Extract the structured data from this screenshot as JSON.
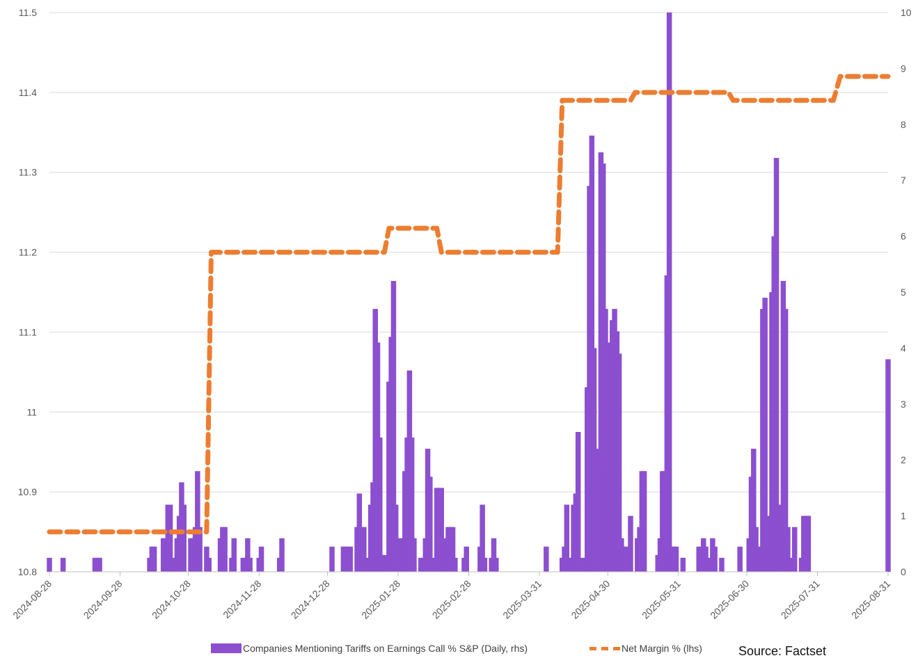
{
  "chart_data": {
    "type": "bar+line",
    "x_range": [
      "2024-08-28",
      "2025-08-31"
    ],
    "x_ticks": [
      "2024-08-28",
      "2024-09-28",
      "2024-10-28",
      "2024-11-28",
      "2024-12-28",
      "2025-01-28",
      "2025-02-28",
      "2025-03-31",
      "2025-04-30",
      "2025-05-31",
      "2025-06-30",
      "2025-07-31",
      "2025-08-31"
    ],
    "left_axis": {
      "label": "Net Margin % (lhs)",
      "min": 10.8,
      "max": 11.5,
      "ticks": [
        "10.8",
        "10.9",
        "11",
        "11.1",
        "11.2",
        "11.3",
        "11.4",
        "11.5"
      ]
    },
    "right_axis": {
      "label": "Companies Mentioning Tariffs on Earnings Call % S&P (Daily, rhs)",
      "min": 0,
      "max": 10,
      "ticks": [
        "0",
        "1",
        "2",
        "3",
        "4",
        "5",
        "6",
        "7",
        "8",
        "9",
        "10"
      ]
    },
    "gridlines": "horizontal",
    "legend_position": "bottom",
    "series": [
      {
        "name": "Companies Mentioning Tariffs on Earnings Call % S&P (Daily, rhs)",
        "type": "bar",
        "axis": "right",
        "color": "#8b4fd0",
        "points": [
          [
            "2024-08-28",
            0.25
          ],
          [
            "2024-09-03",
            0.25
          ],
          [
            "2024-09-17",
            0.25
          ],
          [
            "2024-09-18",
            0.25
          ],
          [
            "2024-09-19",
            0.25
          ],
          [
            "2024-10-11",
            0.25
          ],
          [
            "2024-10-12",
            0.45
          ],
          [
            "2024-10-13",
            0.45
          ],
          [
            "2024-10-17",
            0.6
          ],
          [
            "2024-10-18",
            0.6
          ],
          [
            "2024-10-19",
            1.2
          ],
          [
            "2024-10-20",
            1.2
          ],
          [
            "2024-10-21",
            0.25
          ],
          [
            "2024-10-23",
            0.6
          ],
          [
            "2024-10-24",
            1.0
          ],
          [
            "2024-10-25",
            1.6
          ],
          [
            "2024-10-26",
            1.2
          ],
          [
            "2024-10-29",
            0.6
          ],
          [
            "2024-10-30",
            0.6
          ],
          [
            "2024-10-31",
            0.8
          ],
          [
            "2024-11-01",
            1.8
          ],
          [
            "2024-11-02",
            0.8
          ],
          [
            "2024-11-05",
            0.45
          ],
          [
            "2024-11-06",
            0.25
          ],
          [
            "2024-11-11",
            0.6
          ],
          [
            "2024-11-12",
            0.8
          ],
          [
            "2024-11-13",
            0.8
          ],
          [
            "2024-11-16",
            0.25
          ],
          [
            "2024-11-17",
            0.6
          ],
          [
            "2024-11-21",
            0.25
          ],
          [
            "2024-11-22",
            0.25
          ],
          [
            "2024-11-23",
            0.6
          ],
          [
            "2024-11-24",
            0.25
          ],
          [
            "2024-11-28",
            0.25
          ],
          [
            "2024-11-29",
            0.45
          ],
          [
            "2024-12-07",
            0.25
          ],
          [
            "2024-12-08",
            0.6
          ],
          [
            "2024-12-30",
            0.45
          ],
          [
            "2025-01-04",
            0.45
          ],
          [
            "2025-01-05",
            0.45
          ],
          [
            "2025-01-06",
            0.45
          ],
          [
            "2025-01-07",
            0.45
          ],
          [
            "2025-01-10",
            0.8
          ],
          [
            "2025-01-11",
            1.4
          ],
          [
            "2025-01-12",
            0.8
          ],
          [
            "2025-01-13",
            0.8
          ],
          [
            "2025-01-15",
            0.25
          ],
          [
            "2025-01-16",
            1.2
          ],
          [
            "2025-01-17",
            1.6
          ],
          [
            "2025-01-18",
            4.7
          ],
          [
            "2025-01-19",
            4.1
          ],
          [
            "2025-01-20",
            2.4
          ],
          [
            "2025-01-21",
            0.3
          ],
          [
            "2025-01-22",
            0.3
          ],
          [
            "2025-01-24",
            3.4
          ],
          [
            "2025-01-25",
            4.2
          ],
          [
            "2025-01-26",
            5.2
          ],
          [
            "2025-01-27",
            1.2
          ],
          [
            "2025-01-28",
            0.6
          ],
          [
            "2025-01-30",
            0.6
          ],
          [
            "2025-01-31",
            1.8
          ],
          [
            "2025-02-01",
            2.4
          ],
          [
            "2025-02-02",
            3.6
          ],
          [
            "2025-02-03",
            2.4
          ],
          [
            "2025-02-04",
            0.6
          ],
          [
            "2025-02-07",
            0.25
          ],
          [
            "2025-02-09",
            0.6
          ],
          [
            "2025-02-10",
            2.2
          ],
          [
            "2025-02-11",
            1.7
          ],
          [
            "2025-02-12",
            0.25
          ],
          [
            "2025-02-14",
            1.5
          ],
          [
            "2025-02-15",
            1.5
          ],
          [
            "2025-02-16",
            1.5
          ],
          [
            "2025-02-17",
            0.6
          ],
          [
            "2025-02-18",
            0.25
          ],
          [
            "2025-02-19",
            0.8
          ],
          [
            "2025-02-20",
            0.8
          ],
          [
            "2025-02-21",
            0.8
          ],
          [
            "2025-02-22",
            0.25
          ],
          [
            "2025-02-26",
            0.25
          ],
          [
            "2025-02-27",
            0.45
          ],
          [
            "2025-03-05",
            0.45
          ],
          [
            "2025-03-06",
            1.2
          ],
          [
            "2025-03-07",
            0.25
          ],
          [
            "2025-03-10",
            0.25
          ],
          [
            "2025-03-11",
            0.6
          ],
          [
            "2025-03-12",
            0.25
          ],
          [
            "2025-04-03",
            0.45
          ],
          [
            "2025-04-10",
            0.25
          ],
          [
            "2025-04-11",
            0.45
          ],
          [
            "2025-04-12",
            1.2
          ],
          [
            "2025-04-13",
            0.25
          ],
          [
            "2025-04-14",
            0.25
          ],
          [
            "2025-04-15",
            1.2
          ],
          [
            "2025-04-16",
            1.4
          ],
          [
            "2025-04-17",
            2.5
          ],
          [
            "2025-04-18",
            0.25
          ],
          [
            "2025-04-20",
            0.25
          ],
          [
            "2025-04-21",
            3.3
          ],
          [
            "2025-04-22",
            6.9
          ],
          [
            "2025-04-23",
            7.8
          ],
          [
            "2025-04-24",
            4.0
          ],
          [
            "2025-04-25",
            2.2
          ],
          [
            "2025-04-26",
            1.2
          ],
          [
            "2025-04-27",
            7.5
          ],
          [
            "2025-04-28",
            7.3
          ],
          [
            "2025-04-29",
            4.7
          ],
          [
            "2025-04-30",
            1.8
          ],
          [
            "2025-05-01",
            4.1
          ],
          [
            "2025-05-02",
            4.5
          ],
          [
            "2025-05-03",
            4.7
          ],
          [
            "2025-05-04",
            4.3
          ],
          [
            "2025-05-05",
            3.9
          ],
          [
            "2025-05-06",
            0.6
          ],
          [
            "2025-05-07",
            0.45
          ],
          [
            "2025-05-08",
            0.45
          ],
          [
            "2025-05-10",
            1.0
          ],
          [
            "2025-05-13",
            0.6
          ],
          [
            "2025-05-14",
            0.8
          ],
          [
            "2025-05-15",
            1.8
          ],
          [
            "2025-05-16",
            1.8
          ],
          [
            "2025-05-22",
            0.3
          ],
          [
            "2025-05-23",
            0.6
          ],
          [
            "2025-05-24",
            1.8
          ],
          [
            "2025-05-25",
            1.8
          ],
          [
            "2025-05-26",
            5.3
          ],
          [
            "2025-05-27",
            10.0
          ],
          [
            "2025-05-28",
            0.45
          ],
          [
            "2025-05-29",
            0.45
          ],
          [
            "2025-05-30",
            0.45
          ],
          [
            "2025-06-02",
            0.25
          ],
          [
            "2025-06-09",
            0.45
          ],
          [
            "2025-06-10",
            0.45
          ],
          [
            "2025-06-11",
            0.6
          ],
          [
            "2025-06-12",
            0.45
          ],
          [
            "2025-06-14",
            0.25
          ],
          [
            "2025-06-15",
            0.6
          ],
          [
            "2025-06-16",
            0.45
          ],
          [
            "2025-06-19",
            0.25
          ],
          [
            "2025-06-27",
            0.45
          ],
          [
            "2025-07-01",
            0.6
          ],
          [
            "2025-07-02",
            1.7
          ],
          [
            "2025-07-03",
            2.2
          ],
          [
            "2025-07-04",
            0.8
          ],
          [
            "2025-07-06",
            0.45
          ],
          [
            "2025-07-07",
            4.7
          ],
          [
            "2025-07-08",
            4.9
          ],
          [
            "2025-07-09",
            1.0
          ],
          [
            "2025-07-10",
            0.45
          ],
          [
            "2025-07-11",
            5.0
          ],
          [
            "2025-07-12",
            6.0
          ],
          [
            "2025-07-13",
            7.4
          ],
          [
            "2025-07-15",
            1.2
          ],
          [
            "2025-07-16",
            5.2
          ],
          [
            "2025-07-17",
            4.7
          ],
          [
            "2025-07-18",
            0.8
          ],
          [
            "2025-07-20",
            0.25
          ],
          [
            "2025-07-21",
            0.8
          ],
          [
            "2025-07-24",
            0.25
          ],
          [
            "2025-07-25",
            1.0
          ],
          [
            "2025-07-26",
            1.0
          ],
          [
            "2025-07-27",
            1.0
          ],
          [
            "2025-08-31",
            3.8
          ]
        ]
      },
      {
        "name": "Net Margin % (lhs)",
        "type": "line",
        "style": "dashed",
        "axis": "left",
        "color": "#ed7d31",
        "points": [
          [
            "2024-08-28",
            10.85
          ],
          [
            "2024-11-05",
            10.85
          ],
          [
            "2024-11-07",
            11.2
          ],
          [
            "2025-01-22",
            11.2
          ],
          [
            "2025-01-24",
            11.23
          ],
          [
            "2025-02-14",
            11.23
          ],
          [
            "2025-02-16",
            11.2
          ],
          [
            "2025-04-08",
            11.2
          ],
          [
            "2025-04-10",
            11.39
          ],
          [
            "2025-04-22",
            11.39
          ],
          [
            "2025-05-10",
            11.39
          ],
          [
            "2025-05-12",
            11.4
          ],
          [
            "2025-06-22",
            11.4
          ],
          [
            "2025-06-24",
            11.39
          ],
          [
            "2025-08-07",
            11.39
          ],
          [
            "2025-08-10",
            11.42
          ],
          [
            "2025-08-31",
            11.42
          ]
        ]
      }
    ]
  },
  "legend": {
    "bar_label": "Companies Mentioning Tariffs on Earnings Call % S&P (Daily, rhs)",
    "line_label": "Net Margin % (lhs)"
  },
  "source_text": "Source: Factset"
}
